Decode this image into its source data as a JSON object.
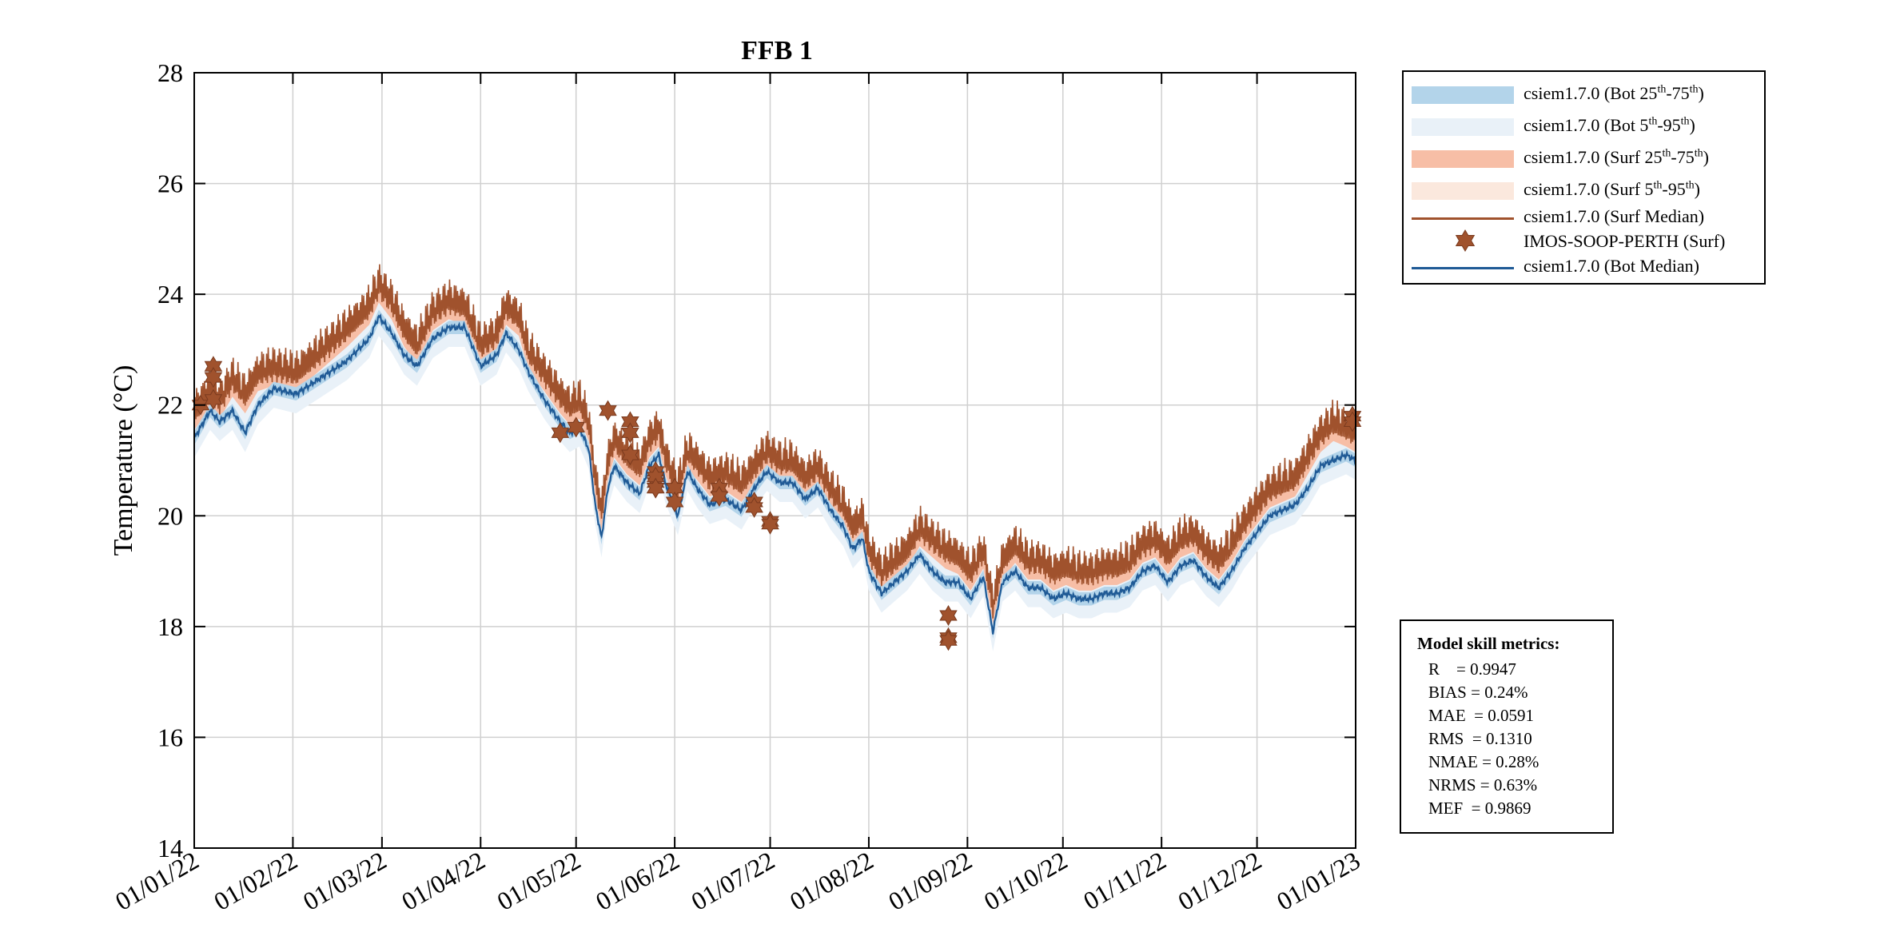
{
  "chart_data": {
    "type": "line",
    "title": "FFB 1",
    "xlabel": "",
    "ylabel": "Temperature (°C)",
    "ylim": [
      14,
      28
    ],
    "yticks": [
      14,
      16,
      18,
      20,
      22,
      24,
      26,
      28
    ],
    "xlim_days": [
      0,
      365
    ],
    "x_tick_labels": [
      "01/01/22",
      "01/02/22",
      "01/03/22",
      "01/04/22",
      "01/05/22",
      "01/06/22",
      "01/07/22",
      "01/08/22",
      "01/09/22",
      "01/10/22",
      "01/11/22",
      "01/12/22",
      "01/01/23"
    ],
    "x_tick_days": [
      0,
      31,
      59,
      90,
      120,
      151,
      181,
      212,
      243,
      273,
      304,
      334,
      365
    ],
    "grid": true,
    "legend_position": "outside-top-right",
    "series": [
      {
        "name": "csiem1.7.0 (Bot Median)",
        "color": "#1f5a96",
        "x_days": [
          0,
          5,
          8,
          12,
          16,
          20,
          25,
          32,
          40,
          48,
          55,
          58,
          62,
          66,
          70,
          75,
          80,
          85,
          90,
          95,
          98,
          102,
          105,
          110,
          115,
          118,
          121,
          124,
          126,
          128,
          130,
          132,
          136,
          140,
          143,
          146,
          148,
          152,
          155,
          158,
          162,
          167,
          172,
          176,
          180,
          184,
          188,
          192,
          196,
          200,
          204,
          207,
          210,
          212,
          216,
          220,
          224,
          228,
          232,
          236,
          240,
          244,
          248,
          251,
          254,
          258,
          262,
          266,
          270,
          274,
          278,
          282,
          286,
          290,
          294,
          298,
          302,
          306,
          310,
          314,
          318,
          322,
          326,
          330,
          334,
          338,
          342,
          346,
          350,
          354,
          358,
          362,
          365
        ],
        "values": [
          21.4,
          21.9,
          21.7,
          21.9,
          21.5,
          22.0,
          22.3,
          22.2,
          22.5,
          22.8,
          23.2,
          23.6,
          23.3,
          22.9,
          22.7,
          23.2,
          23.4,
          23.4,
          22.7,
          22.9,
          23.3,
          23.0,
          22.6,
          22.1,
          21.7,
          21.5,
          21.6,
          21.2,
          20.2,
          19.6,
          20.5,
          20.9,
          20.6,
          20.4,
          20.9,
          21.1,
          20.6,
          20.0,
          20.8,
          20.5,
          20.2,
          20.3,
          20.1,
          20.5,
          20.8,
          20.6,
          20.6,
          20.3,
          20.5,
          20.1,
          19.8,
          19.4,
          19.6,
          19.0,
          18.6,
          18.8,
          19.0,
          19.3,
          19.0,
          18.8,
          18.8,
          18.5,
          18.9,
          17.9,
          18.8,
          19.0,
          18.7,
          18.7,
          18.5,
          18.6,
          18.5,
          18.5,
          18.6,
          18.6,
          18.7,
          19.0,
          19.1,
          18.8,
          19.1,
          19.2,
          18.9,
          18.7,
          19.0,
          19.4,
          19.7,
          20.0,
          20.1,
          20.2,
          20.5,
          20.9,
          21.0,
          21.1,
          21.0
        ]
      },
      {
        "name": "csiem1.7.0 (Surf Median)",
        "color": "#a0522d",
        "x_days": [
          0,
          5,
          8,
          12,
          16,
          20,
          25,
          32,
          40,
          48,
          55,
          58,
          62,
          66,
          70,
          75,
          80,
          85,
          90,
          95,
          98,
          102,
          105,
          110,
          115,
          118,
          121,
          124,
          126,
          128,
          130,
          132,
          136,
          140,
          143,
          146,
          148,
          152,
          155,
          158,
          162,
          167,
          172,
          176,
          180,
          184,
          188,
          192,
          196,
          200,
          204,
          207,
          210,
          212,
          216,
          220,
          224,
          228,
          232,
          236,
          240,
          244,
          248,
          251,
          254,
          258,
          262,
          266,
          270,
          274,
          278,
          282,
          286,
          290,
          294,
          298,
          302,
          306,
          310,
          314,
          318,
          322,
          326,
          330,
          334,
          338,
          342,
          346,
          350,
          354,
          358,
          362,
          365
        ],
        "values": [
          21.7,
          22.1,
          21.9,
          22.3,
          22.0,
          22.4,
          22.5,
          22.4,
          22.8,
          23.2,
          23.6,
          24.0,
          23.7,
          23.2,
          22.9,
          23.5,
          23.7,
          23.6,
          22.9,
          23.1,
          23.6,
          23.4,
          22.8,
          22.4,
          22.0,
          21.8,
          21.9,
          21.5,
          20.5,
          19.9,
          20.8,
          21.2,
          20.9,
          20.7,
          21.2,
          21.4,
          20.9,
          20.3,
          21.0,
          20.8,
          20.5,
          20.6,
          20.4,
          20.7,
          21.0,
          20.8,
          20.8,
          20.5,
          20.7,
          20.3,
          20.0,
          19.6,
          19.8,
          19.2,
          18.8,
          19.0,
          19.2,
          19.6,
          19.4,
          19.2,
          19.1,
          18.8,
          19.2,
          18.2,
          19.0,
          19.3,
          19.0,
          19.0,
          18.8,
          18.9,
          18.8,
          18.8,
          18.9,
          18.9,
          19.0,
          19.3,
          19.4,
          19.1,
          19.4,
          19.5,
          19.2,
          19.0,
          19.3,
          19.7,
          20.0,
          20.3,
          20.4,
          20.5,
          20.9,
          21.3,
          21.5,
          21.4,
          21.3
        ]
      },
      {
        "name": "IMOS-SOOP-PERTH (Surf)",
        "color": "#a0522d",
        "marker": "hexagram",
        "x_days": [
          2,
          6,
          6,
          6,
          115,
          120,
          130,
          137,
          137,
          137,
          145,
          145,
          145,
          145,
          145,
          151,
          151,
          165,
          165,
          176,
          176,
          181,
          181,
          237,
          237,
          237,
          364,
          364
        ],
        "values": [
          22.0,
          22.7,
          22.5,
          22.1,
          21.5,
          21.6,
          21.9,
          21.1,
          21.7,
          21.5,
          20.8,
          20.6,
          20.5,
          20.7,
          20.5,
          20.5,
          20.25,
          20.5,
          20.35,
          20.25,
          20.15,
          19.9,
          19.85,
          18.2,
          17.8,
          17.75,
          21.8,
          21.7
        ]
      }
    ],
    "legend_entries": [
      {
        "text": "csiem1.7.0 (Bot 25",
        "sup1": "th",
        "mid": "-75",
        "sup2": "th",
        "end": ")",
        "kind": "patch",
        "color": "#b3d4ea"
      },
      {
        "text": "csiem1.7.0 (Bot 5",
        "sup1": "th",
        "mid": "-95",
        "sup2": "th",
        "end": ")",
        "kind": "patch",
        "color": "#e9f1f8"
      },
      {
        "text": "csiem1.7.0 (Surf 25",
        "sup1": "th",
        "mid": "-75",
        "sup2": "th",
        "end": ")",
        "kind": "patch",
        "color": "#f7bea6"
      },
      {
        "text": "csiem1.7.0 (Surf 5",
        "sup1": "th",
        "mid": "-95",
        "sup2": "th",
        "end": ")",
        "kind": "patch",
        "color": "#fbe8dd"
      },
      {
        "text": "csiem1.7.0 (Surf Median)",
        "kind": "line",
        "color": "#a0522d"
      },
      {
        "text": "IMOS-SOOP-PERTH (Surf)",
        "kind": "marker",
        "color": "#a0522d"
      },
      {
        "text": "csiem1.7.0 (Bot Median)",
        "kind": "line",
        "color": "#1f5a96"
      }
    ]
  },
  "metrics": {
    "title": "Model skill metrics:",
    "lines": [
      "R    = 0.9947",
      "BIAS = 0.24%",
      "MAE  = 0.0591",
      "RMS  = 0.1310",
      "NMAE = 0.28%",
      "NRMS = 0.63%",
      "MEF  = 0.9869"
    ]
  }
}
